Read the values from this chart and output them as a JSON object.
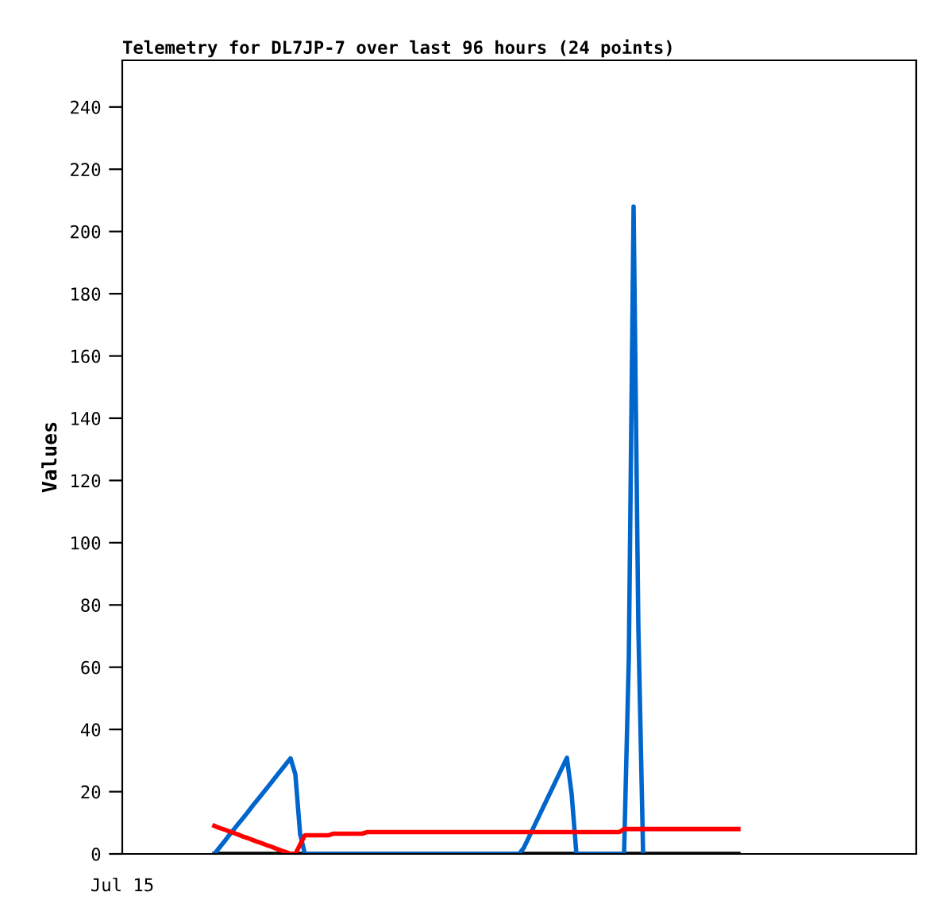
{
  "chart_data": {
    "type": "line",
    "title": "Telemetry for DL7JP-7 over last 96 hours (24 points)",
    "ylabel": "Values",
    "annotations": [
      "Jul 15"
    ],
    "categories": [
      null,
      null,
      null,
      null,
      null,
      null,
      null,
      null,
      null,
      null,
      null,
      null,
      null,
      null,
      null,
      null,
      null,
      null,
      null,
      null,
      null,
      null,
      null,
      null,
      null,
      null,
      null,
      null,
      null,
      null,
      null,
      null,
      null,
      null,
      null,
      null,
      null,
      null,
      null,
      null,
      null,
      null,
      null,
      null,
      null,
      null,
      null,
      null,
      null,
      null,
      null,
      null,
      null,
      null,
      null,
      null,
      null,
      null,
      null,
      null,
      null,
      null,
      null,
      null,
      null,
      null,
      null,
      null,
      null,
      null,
      null,
      null,
      null,
      null,
      null,
      null,
      null,
      null,
      null,
      null,
      null,
      null,
      null,
      null,
      null,
      null,
      null,
      null,
      null,
      null,
      null,
      null,
      null,
      null,
      null,
      null,
      null,
      null,
      null,
      null,
      null,
      null,
      null,
      null,
      null,
      null,
      null,
      null,
      null,
      null,
      null
    ],
    "ylim": [
      0,
      255
    ],
    "yticks": [
      0,
      20,
      40,
      60,
      80,
      100,
      120,
      140,
      160,
      180,
      200,
      220,
      240
    ],
    "grid": false,
    "legend": false,
    "series": [
      {
        "color": "#000000",
        "values": [
          0,
          0,
          0,
          0,
          0,
          0,
          0,
          0,
          0,
          0,
          0,
          0,
          0,
          0,
          0,
          0,
          0,
          0,
          0,
          0,
          0,
          0,
          0,
          0,
          0,
          0,
          0,
          0,
          0,
          0,
          0,
          0,
          0,
          0,
          0,
          0,
          0,
          0,
          0,
          0,
          0,
          0,
          0,
          0,
          0,
          0,
          0,
          0,
          0,
          0,
          0,
          0,
          0,
          0,
          0,
          0,
          0,
          0,
          0,
          0,
          0,
          0,
          0,
          0,
          0,
          0,
          0,
          0,
          0,
          0,
          0,
          0,
          0,
          0,
          0,
          0,
          0,
          0,
          0,
          0,
          0,
          0,
          0,
          0,
          0,
          0,
          0,
          0,
          0,
          0,
          0,
          0,
          0,
          0,
          0,
          0,
          0,
          0,
          0,
          0,
          0,
          0,
          0,
          0,
          0,
          0,
          0,
          0,
          0,
          0,
          0
        ]
      },
      {
        "color": "#0066cc",
        "values": [
          0,
          1.9,
          3.8,
          5.8,
          7.7,
          9.6,
          11.5,
          13.4,
          15.4,
          17.3,
          19.2,
          21.1,
          23,
          25,
          26.9,
          28.8,
          30.7,
          25.6,
          6.4,
          0,
          0,
          0,
          0,
          0,
          0,
          0,
          0,
          0,
          0,
          0,
          0,
          0,
          0,
          0,
          0,
          0,
          0,
          0,
          0,
          0,
          0,
          0,
          0,
          0,
          0,
          0,
          0,
          0,
          0,
          0,
          0,
          0,
          0,
          0,
          0,
          0,
          0,
          0,
          0,
          0,
          0,
          0,
          0,
          0,
          0,
          2.1,
          5.3,
          8.5,
          11.7,
          14.9,
          18.1,
          21.3,
          24.5,
          27.7,
          30.9,
          19.2,
          0,
          0,
          0,
          0,
          0,
          0,
          0,
          0,
          0,
          0,
          0,
          63,
          208,
          73,
          0,
          null,
          null,
          null,
          null,
          null,
          null,
          null,
          null,
          null,
          null,
          null,
          null,
          null,
          null,
          null,
          null,
          null,
          null,
          null,
          null
        ]
      },
      {
        "color": "#ff0000",
        "values": [
          9,
          8.4,
          7.9,
          7.3,
          6.8,
          6.2,
          5.6,
          5.1,
          4.5,
          3.9,
          3.4,
          2.8,
          2.3,
          1.7,
          1.1,
          0.6,
          0,
          0,
          3,
          6,
          6,
          6,
          6,
          6,
          6,
          6.5,
          6.5,
          6.5,
          6.5,
          6.5,
          6.5,
          6.5,
          7,
          7,
          7,
          7,
          7,
          7,
          7,
          7,
          7,
          7,
          7,
          7,
          7,
          7,
          7,
          7,
          7,
          7,
          7,
          7,
          7,
          7,
          7,
          7,
          7,
          7,
          7,
          7,
          7,
          7,
          7,
          7,
          7,
          7,
          7,
          7,
          7,
          7,
          7,
          7,
          7,
          7,
          7,
          7,
          7,
          7,
          7,
          7,
          7,
          7,
          7,
          7,
          7,
          7,
          8,
          8,
          8,
          8,
          8,
          8,
          8,
          8,
          8,
          8,
          8,
          8,
          8,
          8,
          8,
          8,
          8,
          8,
          8,
          8,
          8,
          8,
          8,
          8,
          8
        ]
      }
    ]
  }
}
